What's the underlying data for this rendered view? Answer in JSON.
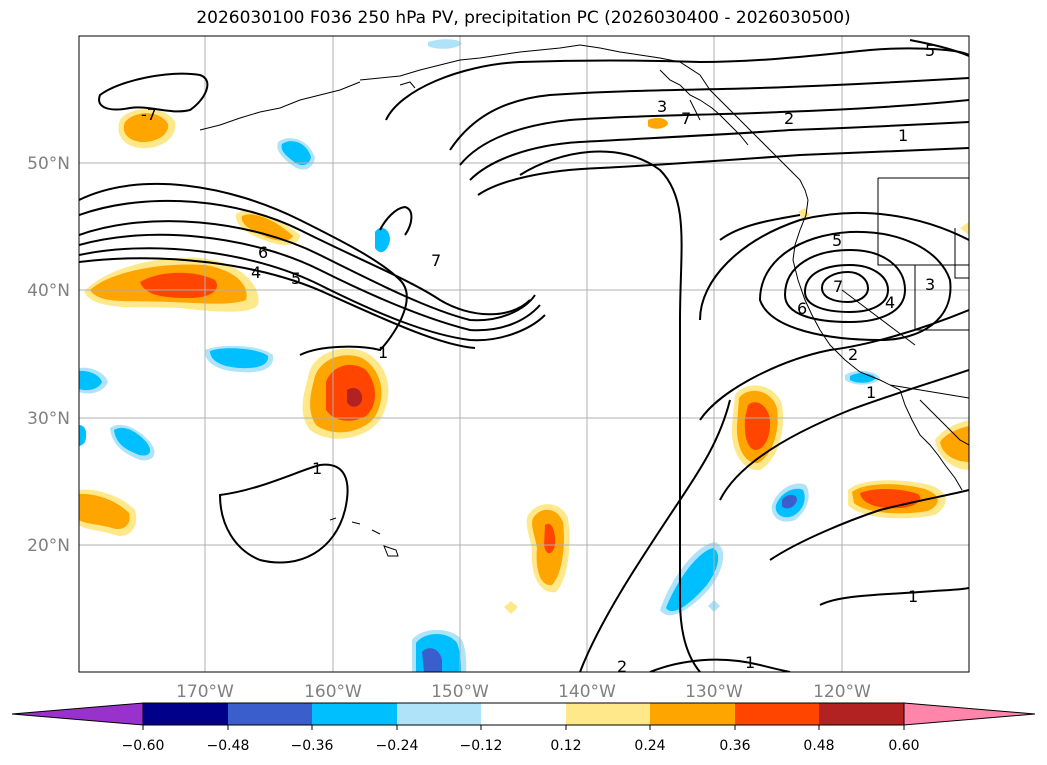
{
  "title": "2026030100 F036 250 hPa PV, precipitation PC (2026030400 - 2026030500)",
  "lat_labels": [
    "50°N",
    "40°N",
    "30°N",
    "20°N"
  ],
  "lon_labels": [
    "170°W",
    "160°W",
    "150°W",
    "140°W",
    "130°W",
    "120°W"
  ],
  "contour_labels": [
    "1",
    "1",
    "1",
    "1",
    "1",
    "1",
    "2",
    "2",
    "2",
    "3",
    "3",
    "4",
    "4",
    "5",
    "5",
    "5",
    "6",
    "6",
    "7",
    "7",
    "7",
    "-7"
  ],
  "colorbar": {
    "tick_labels": [
      "−0.60",
      "−0.48",
      "−0.36",
      "−0.24",
      "−0.12",
      "0.12",
      "0.24",
      "0.36",
      "0.48",
      "0.60"
    ],
    "colors": [
      "#9932cc",
      "#00008b",
      "#3a5fcd",
      "#00bfff",
      "#afe3fa",
      "#ffffff",
      "#ffe88a",
      "#ffa500",
      "#ff4500",
      "#b22222",
      "#ff85ab"
    ]
  },
  "palette": {
    "yellow": "#ffe88a",
    "orange": "#ffa500",
    "red_orange": "#ff4500",
    "dark_red": "#b22222",
    "light_blue": "#afe3fa",
    "sky_blue": "#00bfff",
    "royal_blue": "#3a5fcd"
  }
}
